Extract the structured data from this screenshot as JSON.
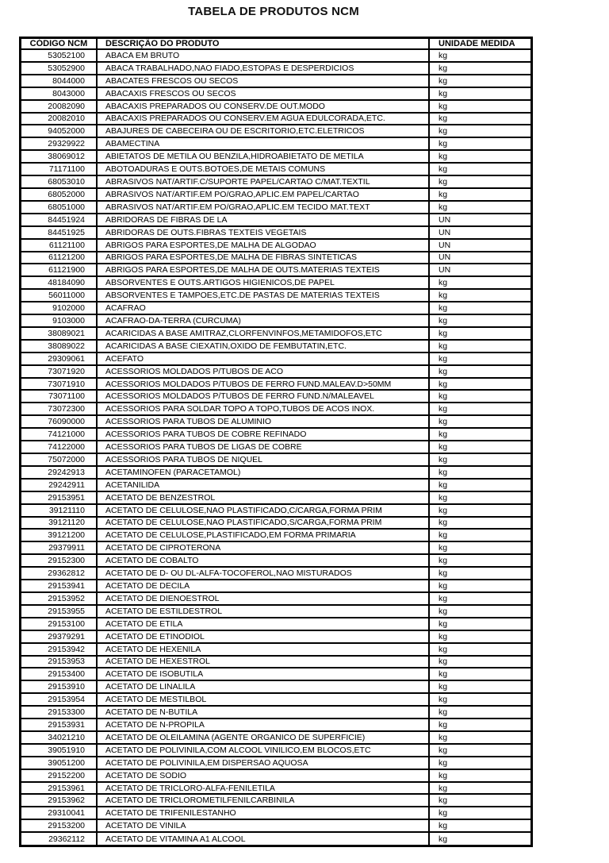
{
  "page": {
    "title": "TABELA DE PRODUTOS NCM"
  },
  "colors": {
    "background": "#ffffff",
    "text": "#000000",
    "grid": "#000000"
  },
  "table": {
    "columns": [
      "CÓDIGO NCM",
      "DESCRIÇÃO DO PRODUTO",
      "UNIDADE MEDIDA"
    ],
    "rows": [
      [
        "53052100",
        "ABACA EM BRUTO",
        "kg"
      ],
      [
        "53052900",
        "ABACA TRABALHADO,NAO FIADO,ESTOPAS E DESPERDICIOS",
        "kg"
      ],
      [
        "8044000",
        "ABACATES FRESCOS OU SECOS",
        "kg"
      ],
      [
        "8043000",
        "ABACAXIS FRESCOS OU SECOS",
        "kg"
      ],
      [
        "20082090",
        "ABACAXIS PREPARADOS OU CONSERV.DE OUT.MODO",
        "kg"
      ],
      [
        "20082010",
        "ABACAXIS PREPARADOS OU CONSERV.EM AGUA EDULCORADA,ETC.",
        "kg"
      ],
      [
        "94052000",
        "ABAJURES DE CABECEIRA OU DE ESCRITORIO,ETC.ELETRICOS",
        "kg"
      ],
      [
        "29329922",
        "ABAMECTINA",
        "kg"
      ],
      [
        "38069012",
        "ABIETATOS DE METILA OU BENZILA,HIDROABIETATO DE METILA",
        "kg"
      ],
      [
        "71171100",
        "ABOTOADURAS E OUTS.BOTOES,DE METAIS COMUNS",
        "kg"
      ],
      [
        "68053010",
        "ABRASIVOS NAT/ARTIF.C/SUPORTE PAPEL/CARTAO C/MAT.TEXTIL",
        "kg"
      ],
      [
        "68052000",
        "ABRASIVOS NAT/ARTIF.EM PO/GRAO,APLIC.EM PAPEL/CARTAO",
        "kg"
      ],
      [
        "68051000",
        "ABRASIVOS NAT/ARTIF.EM PO/GRAO,APLIC.EM TECIDO MAT.TEXT",
        "kg"
      ],
      [
        "84451924",
        "ABRIDORAS DE FIBRAS DE LA",
        "UN"
      ],
      [
        "84451925",
        "ABRIDORAS DE OUTS.FIBRAS TEXTEIS VEGETAIS",
        "UN"
      ],
      [
        "61121100",
        "ABRIGOS PARA ESPORTES,DE MALHA DE ALGODAO",
        "UN"
      ],
      [
        "61121200",
        "ABRIGOS PARA ESPORTES,DE MALHA DE FIBRAS SINTETICAS",
        "UN"
      ],
      [
        "61121900",
        "ABRIGOS PARA ESPORTES,DE MALHA DE OUTS.MATERIAS TEXTEIS",
        "UN"
      ],
      [
        "48184090",
        "ABSORVENTES E OUTS.ARTIGOS HIGIENICOS,DE PAPEL",
        "kg"
      ],
      [
        "56011000",
        "ABSORVENTES E TAMPOES,ETC.DE PASTAS DE MATERIAS TEXTEIS",
        "kg"
      ],
      [
        "9102000",
        "ACAFRAO",
        "kg"
      ],
      [
        "9103000",
        "ACAFRAO-DA-TERRA (CURCUMA)",
        "kg"
      ],
      [
        "38089021",
        "ACARICIDAS A BASE AMITRAZ,CLORFENVINFOS,METAMIDOFOS,ETC",
        "kg"
      ],
      [
        "38089022",
        "ACARICIDAS A BASE CIEXATIN,OXIDO DE FEMBUTATIN,ETC.",
        "kg"
      ],
      [
        "29309061",
        "ACEFATO",
        "kg"
      ],
      [
        "73071920",
        "ACESSORIOS MOLDADOS P/TUBOS DE ACO",
        "kg"
      ],
      [
        "73071910",
        "ACESSORIOS MOLDADOS P/TUBOS DE FERRO FUND.MALEAV.D>50MM",
        "kg"
      ],
      [
        "73071100",
        "ACESSORIOS MOLDADOS P/TUBOS DE FERRO FUND.N/MALEAVEL",
        "kg"
      ],
      [
        "73072300",
        "ACESSORIOS PARA SOLDAR TOPO A TOPO,TUBOS DE ACOS INOX.",
        "kg"
      ],
      [
        "76090000",
        "ACESSORIOS PARA TUBOS DE ALUMINIO",
        "kg"
      ],
      [
        "74121000",
        "ACESSORIOS PARA TUBOS DE COBRE REFINADO",
        "kg"
      ],
      [
        "74122000",
        "ACESSORIOS PARA TUBOS DE LIGAS DE COBRE",
        "kg"
      ],
      [
        "75072000",
        "ACESSORIOS PARA TUBOS DE NIQUEL",
        "kg"
      ],
      [
        "29242913",
        "ACETAMINOFEN (PARACETAMOL)",
        "kg"
      ],
      [
        "29242911",
        "ACETANILIDA",
        "kg"
      ],
      [
        "29153951",
        "ACETATO DE BENZESTROL",
        "kg"
      ],
      [
        "39121110",
        "ACETATO DE CELULOSE,NAO PLASTIFICADO,C/CARGA,FORMA PRIM",
        "kg"
      ],
      [
        "39121120",
        "ACETATO DE CELULOSE,NAO PLASTIFICADO,S/CARGA,FORMA PRIM",
        "kg"
      ],
      [
        "39121200",
        "ACETATO DE CELULOSE,PLASTIFICADO,EM FORMA PRIMARIA",
        "kg"
      ],
      [
        "29379911",
        "ACETATO DE CIPROTERONA",
        "kg"
      ],
      [
        "29152300",
        "ACETATO DE COBALTO",
        "kg"
      ],
      [
        "29362812",
        "ACETATO DE D- OU DL-ALFA-TOCOFEROL,NAO MISTURADOS",
        "kg"
      ],
      [
        "29153941",
        "ACETATO DE DECILA",
        "kg"
      ],
      [
        "29153952",
        "ACETATO DE DIENOESTROL",
        "kg"
      ],
      [
        "29153955",
        "ACETATO DE ESTILDESTROL",
        "kg"
      ],
      [
        "29153100",
        "ACETATO DE ETILA",
        "kg"
      ],
      [
        "29379291",
        "ACETATO DE ETINODIOL",
        "kg"
      ],
      [
        "29153942",
        "ACETATO DE HEXENILA",
        "kg"
      ],
      [
        "29153953",
        "ACETATO DE HEXESTROL",
        "kg"
      ],
      [
        "29153400",
        "ACETATO DE ISOBUTILA",
        "kg"
      ],
      [
        "29153910",
        "ACETATO DE LINALILA",
        "kg"
      ],
      [
        "29153954",
        "ACETATO DE MESTILBOL",
        "kg"
      ],
      [
        "29153300",
        "ACETATO DE N-BUTILA",
        "kg"
      ],
      [
        "29153931",
        "ACETATO DE N-PROPILA",
        "kg"
      ],
      [
        "34021210",
        "ACETATO DE OLEILAMINA (AGENTE ORGANICO DE SUPERFICIE)",
        "kg"
      ],
      [
        "39051910",
        "ACETATO DE POLIVINILA,COM ALCOOL VINILICO,EM BLOCOS,ETC",
        "kg"
      ],
      [
        "39051200",
        "ACETATO DE POLIVINILA,EM DISPERSAO AQUOSA",
        "kg"
      ],
      [
        "29152200",
        "ACETATO DE SODIO",
        "kg"
      ],
      [
        "29153961",
        "ACETATO DE TRICLORO-ALFA-FENILETILA",
        "kg"
      ],
      [
        "29153962",
        "ACETATO DE TRICLOROMETILFENILCARBINILA",
        "kg"
      ],
      [
        "29310041",
        "ACETATO DE TRIFENILESTANHO",
        "kg"
      ],
      [
        "29153200",
        "ACETATO DE VINILA",
        "kg"
      ],
      [
        "29362112",
        "ACETATO DE VITAMINA A1 ALCOOL",
        "kg"
      ]
    ]
  }
}
